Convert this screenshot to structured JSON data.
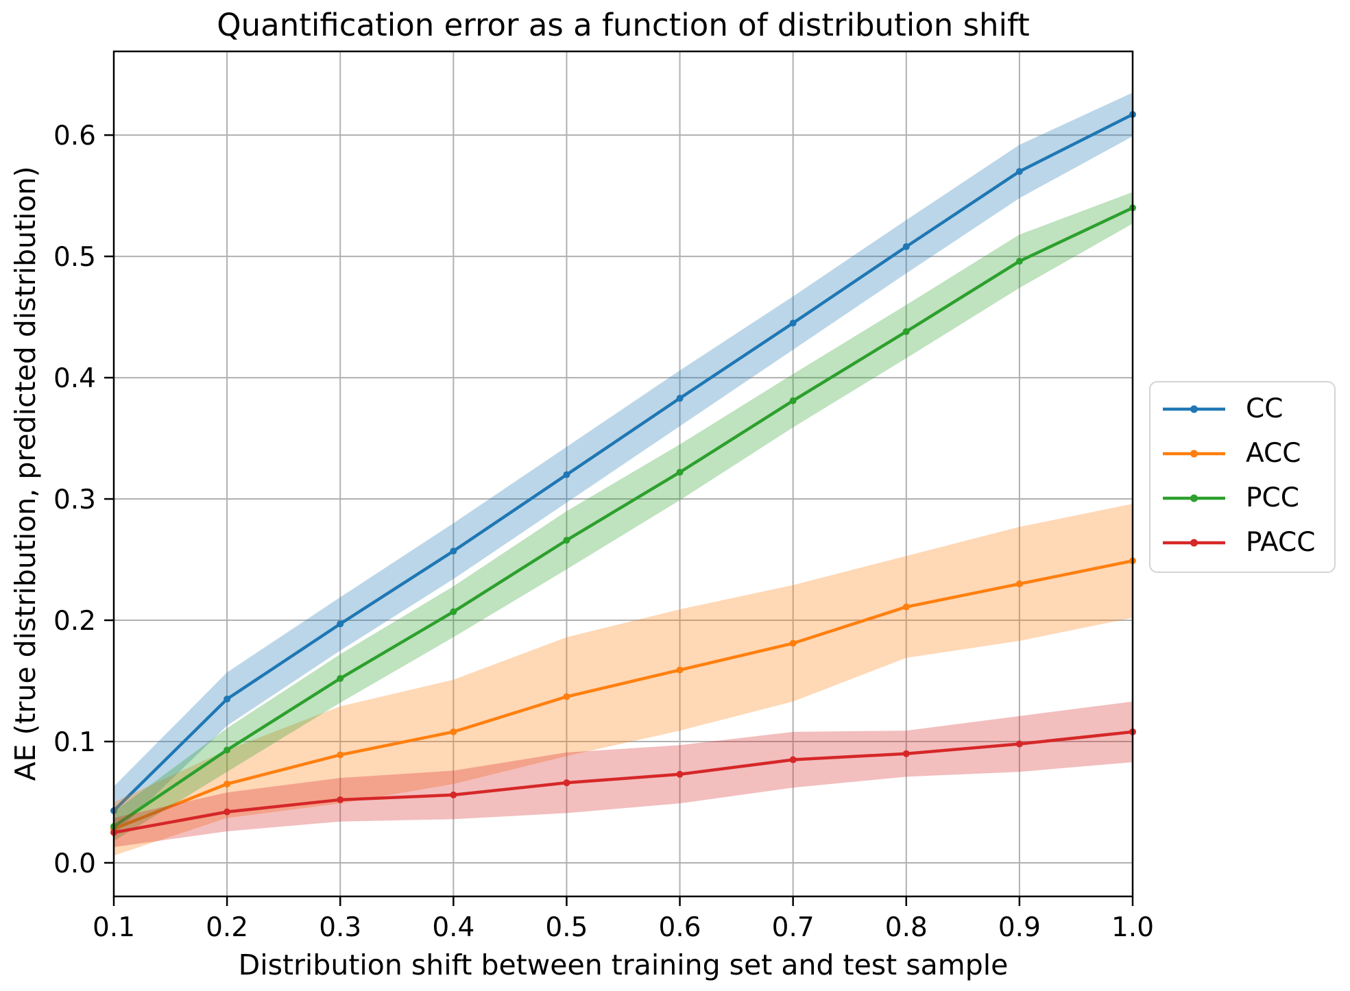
{
  "figure": {
    "kind": "matplotlib-style line chart"
  },
  "chart_data": {
    "type": "line",
    "title": "Quantification error as a function of distribution shift",
    "xlabel": "Distribution shift between training set and test sample",
    "ylabel": "AE (true distribution, predicted distribution)",
    "x": [
      0.1,
      0.2,
      0.3,
      0.4,
      0.5,
      0.6,
      0.7,
      0.8,
      0.9,
      1.0
    ],
    "series": [
      {
        "name": "CC",
        "color": "#1f77b4",
        "values": [
          0.043,
          0.135,
          0.197,
          0.257,
          0.32,
          0.383,
          0.445,
          0.508,
          0.57,
          0.617
        ],
        "band": [
          0.02,
          0.022,
          0.022,
          0.023,
          0.023,
          0.023,
          0.022,
          0.022,
          0.022,
          0.018
        ]
      },
      {
        "name": "ACC",
        "color": "#ff7f0e",
        "values": [
          0.028,
          0.065,
          0.089,
          0.108,
          0.137,
          0.159,
          0.181,
          0.211,
          0.23,
          0.249
        ],
        "band": [
          0.022,
          0.028,
          0.04,
          0.043,
          0.049,
          0.05,
          0.048,
          0.042,
          0.047,
          0.047
        ]
      },
      {
        "name": "PCC",
        "color": "#2ca02c",
        "values": [
          0.03,
          0.093,
          0.152,
          0.207,
          0.266,
          0.322,
          0.381,
          0.438,
          0.496,
          0.54
        ],
        "band": [
          0.012,
          0.018,
          0.02,
          0.021,
          0.024,
          0.023,
          0.022,
          0.022,
          0.022,
          0.013
        ]
      },
      {
        "name": "PACC",
        "color": "#d62728",
        "values": [
          0.025,
          0.042,
          0.052,
          0.056,
          0.066,
          0.073,
          0.085,
          0.09,
          0.098,
          0.108
        ],
        "band": [
          0.012,
          0.016,
          0.018,
          0.02,
          0.025,
          0.024,
          0.023,
          0.019,
          0.023,
          0.025
        ]
      }
    ],
    "band_alpha": 0.3,
    "xticks": [
      0.1,
      0.2,
      0.3,
      0.4,
      0.5,
      0.6,
      0.7,
      0.8,
      0.9,
      1.0
    ],
    "xtick_labels": [
      "0.1",
      "0.2",
      "0.3",
      "0.4",
      "0.5",
      "0.6",
      "0.7",
      "0.8",
      "0.9",
      "1.0"
    ],
    "yticks": [
      0.0,
      0.1,
      0.2,
      0.3,
      0.4,
      0.5,
      0.6
    ],
    "ytick_labels": [
      "0.0",
      "0.1",
      "0.2",
      "0.3",
      "0.4",
      "0.5",
      "0.6"
    ],
    "xlim": [
      0.1,
      1.0
    ],
    "ylim": [
      -0.0277,
      0.669
    ],
    "grid": true,
    "grid_color": "#b0b0b0",
    "frame_color": "#000000",
    "legend": {
      "position": "center-right-outside",
      "entries": [
        "CC",
        "ACC",
        "PCC",
        "PACC"
      ]
    }
  }
}
